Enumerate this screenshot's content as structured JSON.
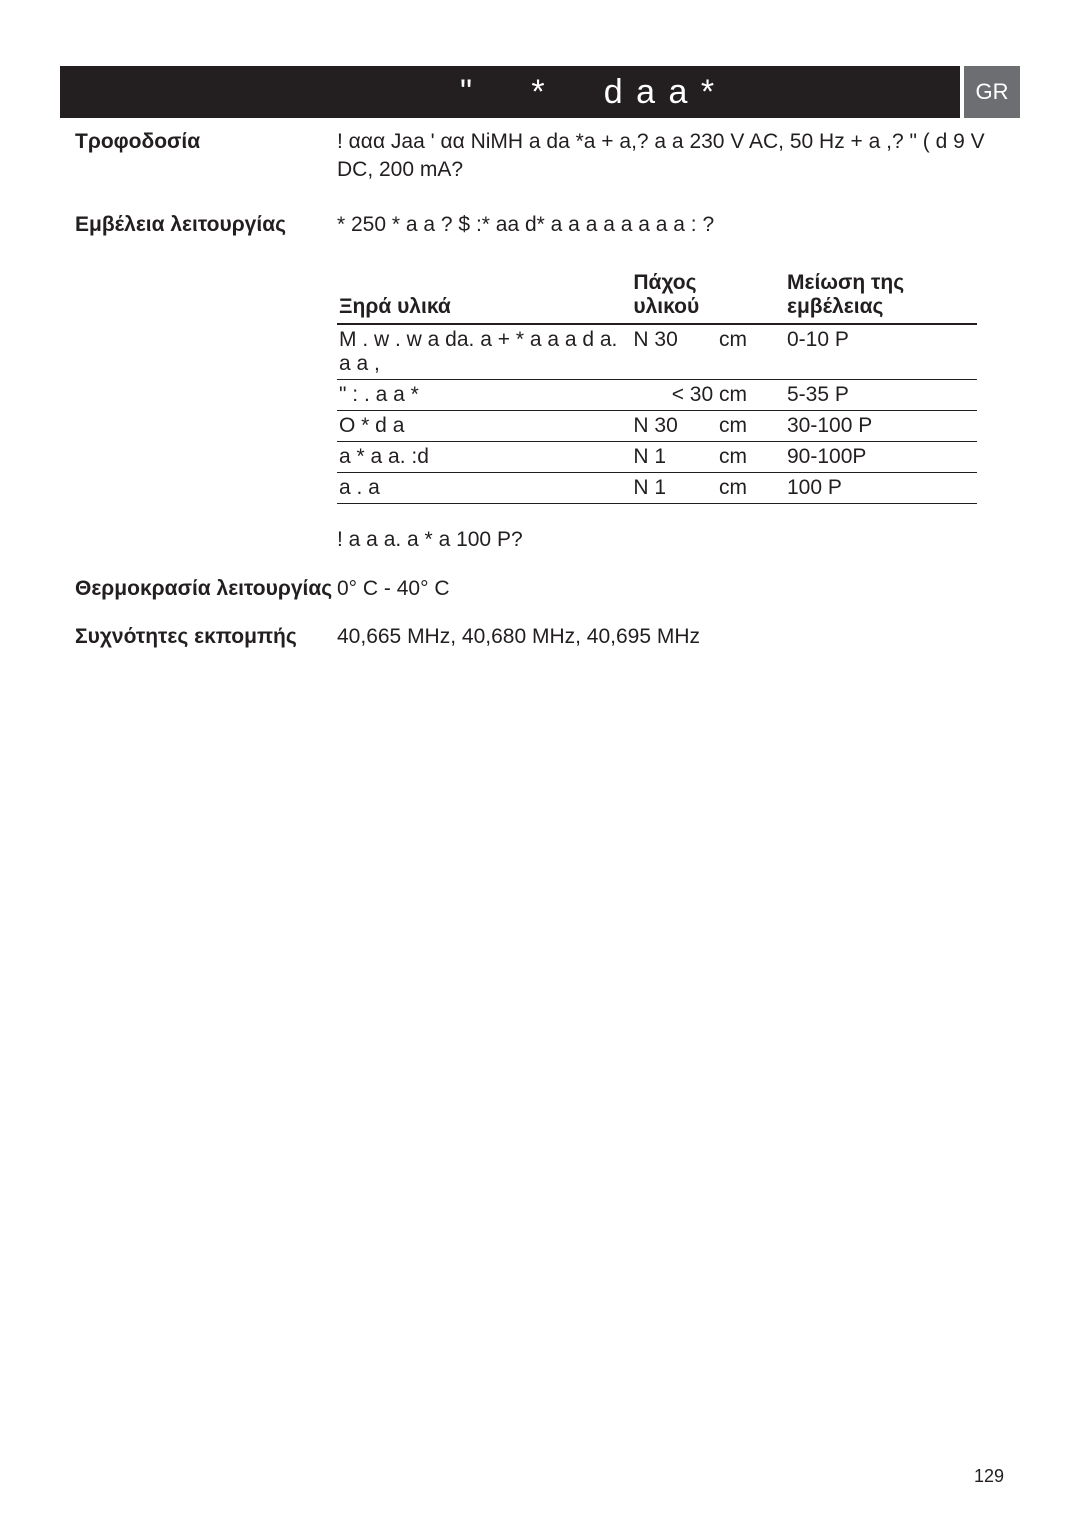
{
  "header": {
    "title_a": "\"",
    "title_b": "*",
    "title_c": "d a  a *",
    "lang": "GR"
  },
  "specs": {
    "powerLabel": "Τροφοδοσία",
    "powerValue": "! ααα Jaa ' αα NiMH a da *a + a,? a a 230 V AC, 50 Hz + a ,? \" ( d 9 V DC, 200 mA?",
    "rangeLabel": "Εμβέλεια λειτουργίας",
    "rangeValue": "* 250 * a a ? $ :* aa d* a a a a a a a a : ?",
    "tempLabel": "Θερμοκρασία λειτουργίας",
    "tempValue": "0° C - 40° C",
    "freqLabel": "Συχνότητες εκπομπής",
    "freqValue": "40,665 MHz, 40,680 MHz, 40,695 MHz"
  },
  "table": {
    "col1": "Ξηρά υλικά",
    "col2a": "Πάχος",
    "col2b": "υλικού",
    "col3a": "Μείωση της",
    "col3b": "εμβέλειας",
    "rows": [
      {
        "mat": "M . w . w a da. a + * a a a d a. a a ,",
        "thick_a": "N 30",
        "thick_b": "cm",
        "reduce": "0-10 P"
      },
      {
        "mat": "\" : . a a *",
        "thick_a": "",
        "thick_b": "< 30 cm",
        "reduce": "5-35 P"
      },
      {
        "mat": "O * d a",
        "thick_a": "N 30",
        "thick_b": "cm",
        "reduce": "30-100 P"
      },
      {
        "mat": " a * a a. :d",
        "thick_a": "N 1",
        "thick_b": "cm",
        "reduce": "90-100P"
      },
      {
        "mat": " a . a",
        "thick_a": "N 1",
        "thick_b": "cm",
        "reduce": "100 P"
      }
    ],
    "note": "! a a a. a * a 100 P?"
  },
  "page": "129",
  "style": {
    "bg": "#ffffff",
    "text": "#231f20",
    "bandBg": "#231f20",
    "badgeBg": "#6d6e71",
    "fontSize": 21
  }
}
